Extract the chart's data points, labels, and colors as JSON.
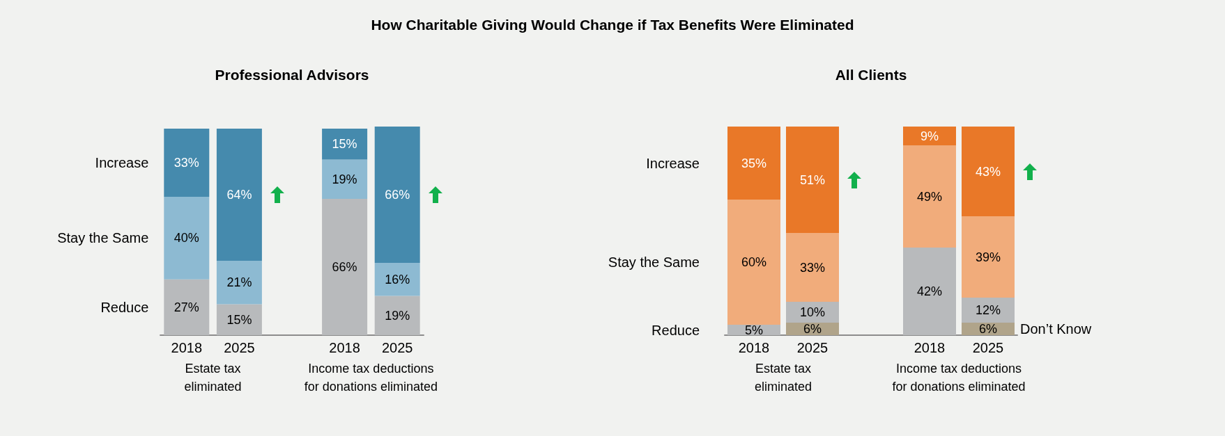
{
  "chart_data": [
    {
      "type": "bar",
      "stacked": true,
      "title": "How Charitable Giving Would Change if Tax Benefits Were Eliminated",
      "subtitle": "Professional Advisors",
      "categories": [
        "2018",
        "2025",
        null,
        "2018",
        "2025"
      ],
      "annotations": [
        "Estate tax\neliminated",
        "Income tax deductions\nfor donations eliminated"
      ],
      "series": [
        {
          "name": "Reduce",
          "color": "#b8babc",
          "values": [
            27,
            15,
            null,
            66,
            19
          ],
          "value_labels": [
            "27%",
            "15%",
            null,
            "66%",
            "19%"
          ]
        },
        {
          "name": "Stay the Same",
          "color": "#8dbad2",
          "values": [
            40,
            21,
            null,
            19,
            16
          ],
          "value_labels": [
            "40%",
            "21%",
            null,
            "19%",
            "16%"
          ]
        },
        {
          "name": "Increase",
          "color": "#458aad",
          "values": [
            33,
            64,
            null,
            15,
            66
          ],
          "value_labels": [
            "33%",
            "64%",
            null,
            "15%",
            "66%"
          ]
        }
      ]
    },
    {
      "type": "bar",
      "stacked": true,
      "subtitle": "All Clients",
      "categories": [
        "2018",
        "2025",
        null,
        "2018",
        "2025"
      ],
      "annotations": [
        "Estate tax\neliminated",
        "Income tax deductions\nfor donations eliminated"
      ],
      "series": [
        {
          "name": "Don’t Know",
          "color": "#b0a48a",
          "values": [
            null,
            6,
            null,
            null,
            6
          ],
          "value_labels": [
            null,
            "6%",
            null,
            null,
            "6%"
          ]
        },
        {
          "name": "Reduce",
          "color": "#b8babc",
          "values": [
            5,
            10,
            null,
            42,
            12
          ],
          "value_labels": [
            "5%",
            "10%",
            null,
            "42%",
            "12%"
          ]
        },
        {
          "name": "Stay the Same",
          "color": "#f1ac7b",
          "values": [
            60,
            33,
            null,
            49,
            39
          ],
          "value_labels": [
            "60%",
            "33%",
            null,
            "49%",
            "39%"
          ]
        },
        {
          "name": "Increase",
          "color": "#e97828",
          "values": [
            35,
            51,
            null,
            9,
            43
          ],
          "value_labels": [
            "35%",
            "51%",
            null,
            "9%",
            "43%"
          ]
        }
      ]
    }
  ]
}
